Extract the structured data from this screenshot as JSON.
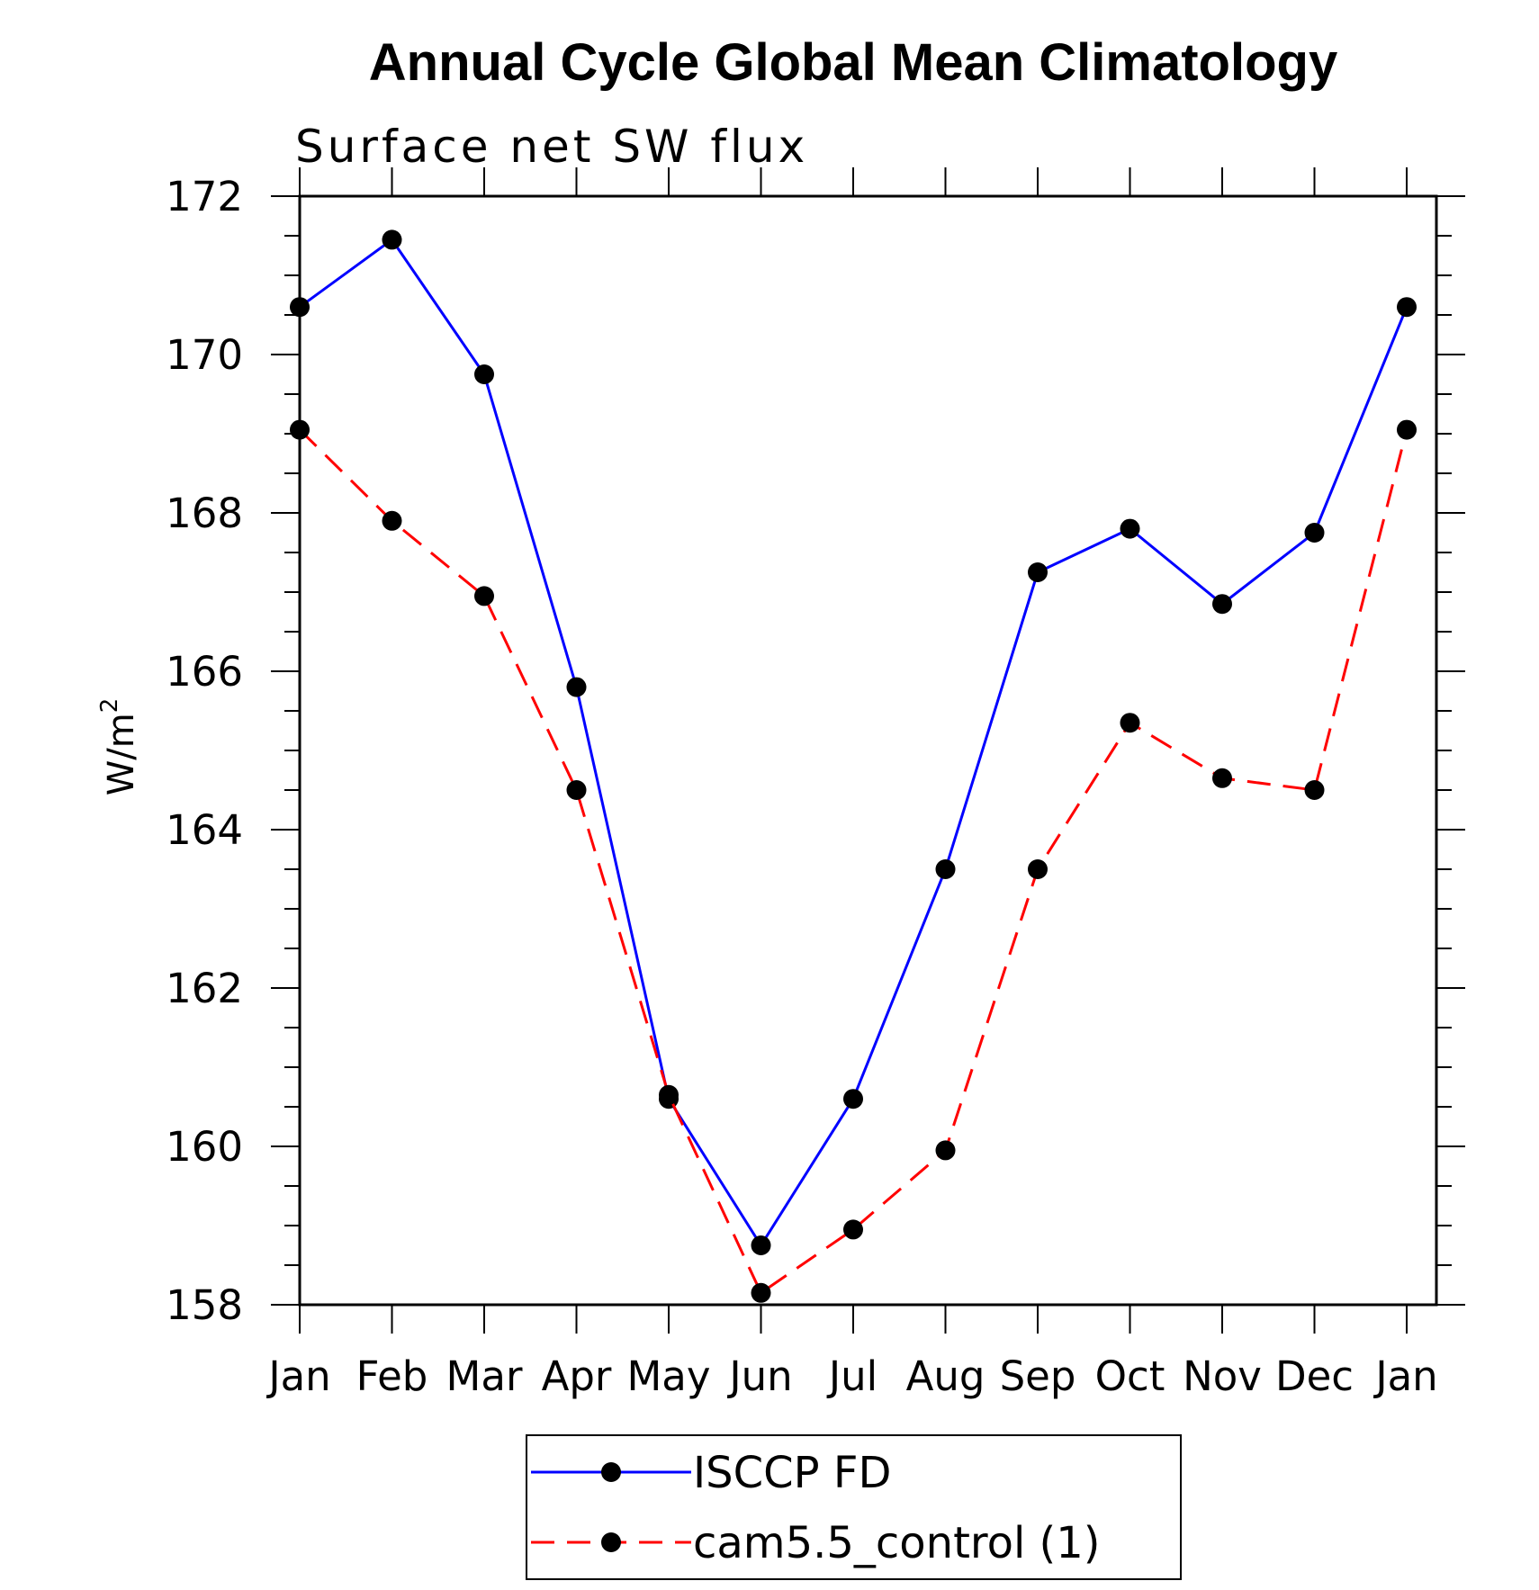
{
  "chart_data": {
    "type": "line",
    "title": "Annual Cycle Global Mean Climatology",
    "subtitle": "Surface net SW flux",
    "ylabel": "W/m",
    "ylabel_superscript": "2",
    "xlabel": "",
    "categories": [
      "Jan",
      "Feb",
      "Mar",
      "Apr",
      "May",
      "Jun",
      "Jul",
      "Aug",
      "Sep",
      "Oct",
      "Nov",
      "Dec",
      "Jan"
    ],
    "ylim": [
      158,
      172
    ],
    "yticks": [
      158,
      160,
      162,
      164,
      166,
      168,
      170,
      172
    ],
    "grid": false,
    "legend_position": "bottom-center",
    "series": [
      {
        "name": "ISCCP FD",
        "color": "#0000ff",
        "line_style": "solid",
        "marker": "filled-circle",
        "values": [
          170.6,
          171.45,
          169.75,
          165.8,
          160.6,
          158.75,
          160.6,
          163.5,
          167.25,
          167.8,
          166.85,
          167.75,
          170.6
        ]
      },
      {
        "name": "cam5.5_control (1)",
        "color": "#ff0000",
        "line_style": "dashed",
        "marker": "filled-circle",
        "values": [
          169.05,
          167.9,
          166.95,
          164.5,
          160.65,
          158.15,
          158.95,
          159.95,
          163.5,
          165.35,
          164.65,
          164.5,
          169.05
        ]
      }
    ]
  }
}
